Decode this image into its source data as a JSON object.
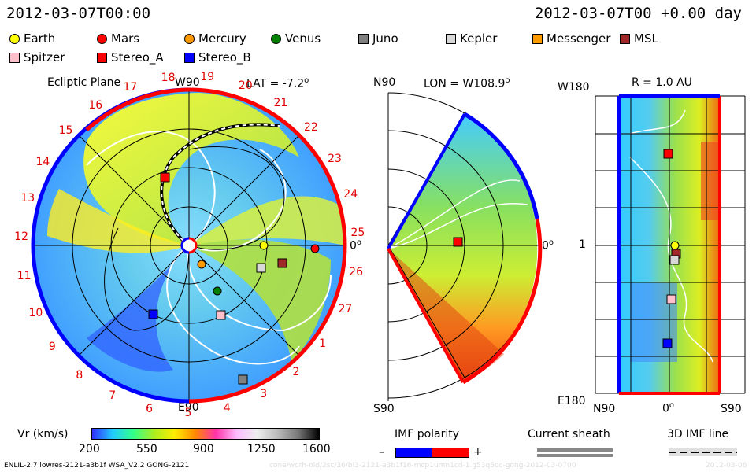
{
  "header": {
    "left_date": "2012-03-07T00:00",
    "right_date": "2012-03-07T00 +0.00 day"
  },
  "legend": [
    {
      "name": "Earth",
      "shape": "circle",
      "color": "#ffff00"
    },
    {
      "name": "Mars",
      "shape": "circle",
      "color": "#ff0000"
    },
    {
      "name": "Mercury",
      "shape": "circle",
      "color": "#ff9900"
    },
    {
      "name": "Venus",
      "shape": "circle",
      "color": "#008000"
    },
    {
      "name": "Juno",
      "shape": "square",
      "color": "#808080"
    },
    {
      "name": "Kepler",
      "shape": "square",
      "color": "#d8d8d8"
    },
    {
      "name": "Messenger",
      "shape": "square",
      "color": "#ff9900"
    },
    {
      "name": "MSL",
      "shape": "square",
      "color": "#a02828"
    },
    {
      "name": "Spitzer",
      "shape": "square",
      "color": "#ffc0cb"
    },
    {
      "name": "Stereo_A",
      "shape": "square",
      "color": "#ff0000"
    },
    {
      "name": "Stereo_B",
      "shape": "square",
      "color": "#0000ff"
    }
  ],
  "panel1": {
    "title": "Ecliptic Plane",
    "top_label": "W90",
    "lat_label": "LAT = -7.2",
    "bottom_label": "E90",
    "right_label": "0",
    "degree": "o",
    "carrington_numbers": [
      "19",
      "20",
      "21",
      "22",
      "23",
      "24",
      "25",
      "26",
      "27",
      "1",
      "2",
      "3",
      "4",
      "5",
      "6",
      "7",
      "8",
      "9",
      "10",
      "11",
      "12",
      "13",
      "14",
      "15",
      "16",
      "17",
      "18"
    ]
  },
  "panel2": {
    "top_left": "N90",
    "lon_label": "LON = W108.9",
    "degree": "o",
    "bottom_left": "S90",
    "right_label": "0"
  },
  "panel3": {
    "r_label": "R = 1.0 AU",
    "top_left": "W180",
    "mid_left": "1",
    "bottom_left": "E180",
    "x_left": "N90",
    "x_mid": "0",
    "x_right": "S90",
    "degree": "o"
  },
  "colorbar": {
    "label": "Vr (km/s)",
    "ticks": [
      "200",
      "550",
      "900",
      "1250",
      "1600"
    ]
  },
  "imf": {
    "title": "IMF polarity",
    "minus": "–",
    "plus": "+",
    "neg_color": "#0000ff",
    "pos_color": "#ff0000"
  },
  "current_sheath": {
    "title": "Current sheath"
  },
  "imf3d": {
    "title": "3D IMF line"
  },
  "footer": {
    "model_info": "ENLIL-2.7 lowres-2121-a3b1f WSA_V2.2 GONG-2121",
    "watermark": "cone/worh-oid/2sc/36/bl3-2121-a3b1f16-mcp1umn1cd-1.g53q5dc-gong-2012-03-0700",
    "watermark_date": "2012-03-06"
  }
}
